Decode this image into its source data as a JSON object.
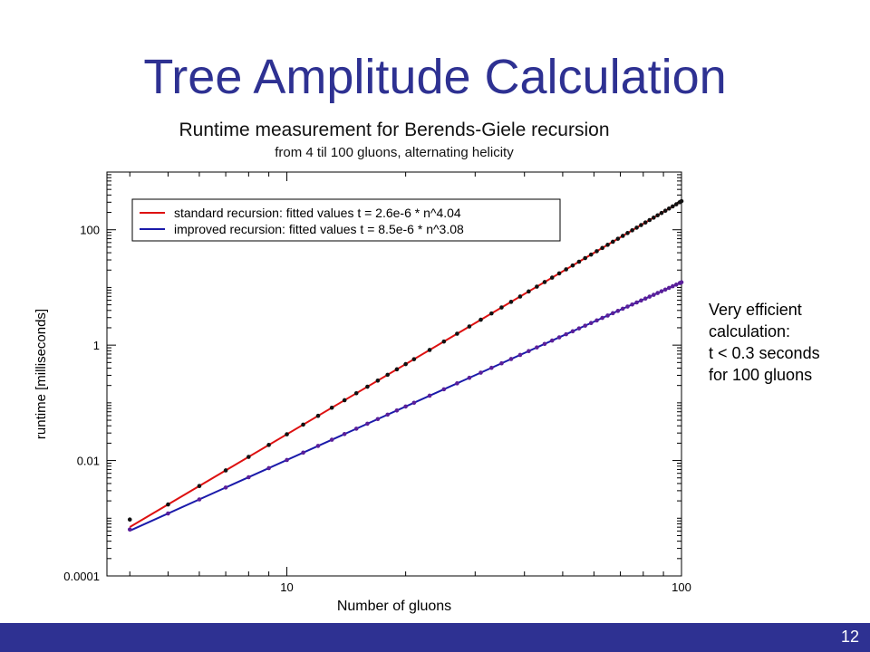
{
  "slide": {
    "title": "Tree Amplitude Calculation",
    "page_number": "12",
    "note_lines": [
      "Very efficient",
      "calculation:",
      "t < 0.3 seconds",
      "for 100 gluons"
    ],
    "accent_color": "#2e3192"
  },
  "chart_data": {
    "type": "scatter",
    "title": "Runtime measurement for Berends-Giele recursion",
    "subtitle": "from 4 til 100 gluons, alternating helicity",
    "xlabel": "Number of gluons",
    "ylabel": "runtime [milliseconds]",
    "xscale": "log",
    "yscale": "log",
    "xlim": [
      3.5,
      100
    ],
    "ylim": [
      0.0001,
      1000
    ],
    "xticks": [
      {
        "value": 10,
        "label": "10"
      },
      {
        "value": 100,
        "label": "100"
      }
    ],
    "yticks": [
      {
        "value": 0.0001,
        "label": "0.0001"
      },
      {
        "value": 0.01,
        "label": "0.01"
      },
      {
        "value": 1,
        "label": "1"
      },
      {
        "value": 100,
        "label": "100"
      }
    ],
    "grid": false,
    "legend_position": "top-left",
    "series": [
      {
        "name": "standard recursion: fitted values t = 2.6e-6 * n^4.04",
        "color": "#dd1111",
        "point_color": "#111111",
        "fit": {
          "coef": 2.6e-06,
          "exp": 4.04
        },
        "x_range": [
          4,
          100
        ]
      },
      {
        "name": "improved recursion: fitted values t = 8.5e-6 * n^3.08",
        "color": "#1a1aaa",
        "point_color": "#5a1f9a",
        "fit": {
          "coef": 8.5e-06,
          "exp": 3.08
        },
        "x_range": [
          4,
          100
        ]
      }
    ]
  }
}
